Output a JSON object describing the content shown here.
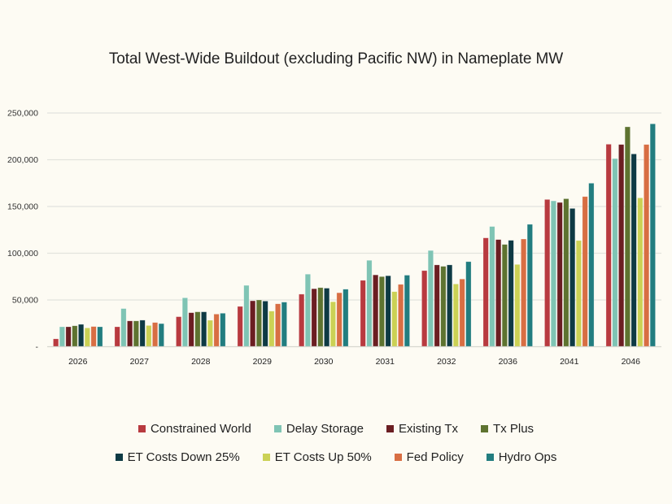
{
  "chart_data": {
    "type": "bar",
    "title": "Total West-Wide Buildout (excluding Pacific NW) in Nameplate MW",
    "xlabel": "",
    "ylabel": "",
    "ylim": [
      0,
      250000
    ],
    "yticks": [
      0,
      50000,
      100000,
      150000,
      200000,
      250000
    ],
    "ytick_labels": [
      "-",
      "50,000",
      "100,000",
      "150,000",
      "200,000",
      "250,000"
    ],
    "grid": true,
    "legend_position": "bottom",
    "categories": [
      "2026",
      "2027",
      "2028",
      "2029",
      "2030",
      "2031",
      "2032",
      "2036",
      "2041",
      "2046"
    ],
    "series": [
      {
        "name": "Constrained World",
        "color": "#b83a3f",
        "values": [
          8400,
          21300,
          32100,
          43100,
          56200,
          71000,
          81400,
          116400,
          157500,
          216600
        ]
      },
      {
        "name": "Delay Storage",
        "color": "#7fc4b4",
        "values": [
          21300,
          40800,
          52300,
          65600,
          77600,
          92400,
          102900,
          128600,
          156000,
          201200
        ]
      },
      {
        "name": "Existing Tx",
        "color": "#6b1e22",
        "values": [
          21300,
          27600,
          36400,
          49100,
          62000,
          76800,
          87500,
          114600,
          154300,
          216300
        ]
      },
      {
        "name": "Tx Plus",
        "color": "#5e7330",
        "values": [
          22400,
          27600,
          37300,
          50000,
          63200,
          75000,
          86000,
          109400,
          158300,
          235200
        ]
      },
      {
        "name": "ET Costs Down 25%",
        "color": "#0e3a44",
        "values": [
          23900,
          28400,
          37300,
          48800,
          62600,
          75900,
          87500,
          113800,
          147900,
          206200
        ]
      },
      {
        "name": "ET Costs Up 50%",
        "color": "#cbd155",
        "values": [
          20100,
          22700,
          28300,
          38100,
          48100,
          58900,
          67100,
          88000,
          113600,
          159200
        ]
      },
      {
        "name": "Fed Policy",
        "color": "#d86e43",
        "values": [
          21600,
          25900,
          34900,
          45900,
          57700,
          66700,
          72400,
          115200,
          160600,
          216300
        ]
      },
      {
        "name": "Hydro Ops",
        "color": "#227d7f",
        "values": [
          21300,
          24700,
          35800,
          47700,
          61500,
          76500,
          91000,
          130900,
          174900,
          238400
        ]
      }
    ]
  }
}
